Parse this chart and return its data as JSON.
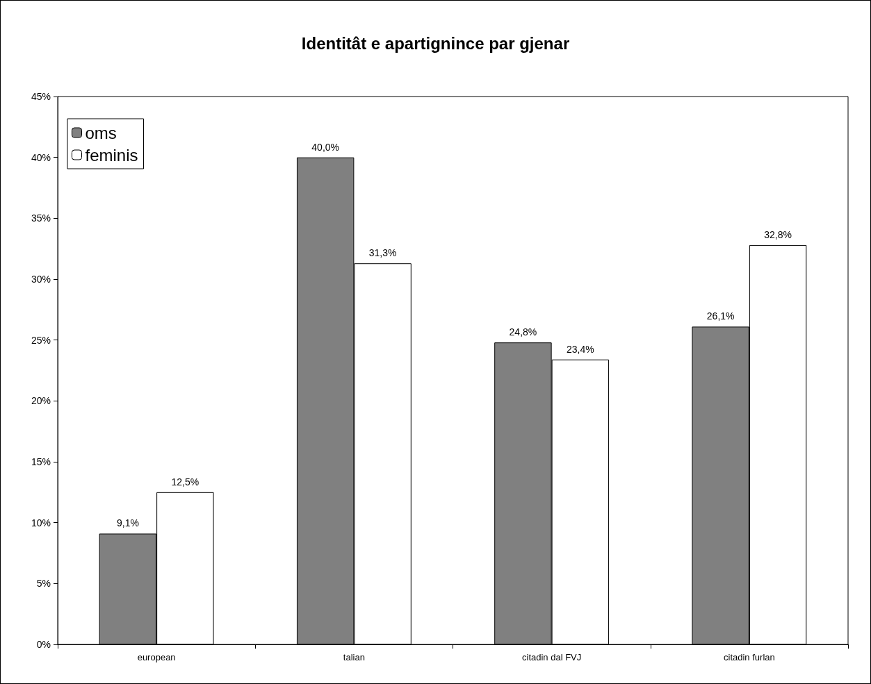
{
  "chart_data": {
    "type": "bar",
    "title": "Identitât e apartignince par gjenar",
    "categories": [
      "european",
      "talian",
      "citadin dal FVJ",
      "citadin furlan"
    ],
    "series": [
      {
        "name": "oms",
        "color": "#808080",
        "values": [
          9.1,
          40.0,
          24.8,
          26.1
        ],
        "value_labels": [
          "9,1%",
          "40,0%",
          "24,8%",
          "26,1%"
        ]
      },
      {
        "name": "feminis",
        "color": "#ffffff",
        "values": [
          12.5,
          31.3,
          23.4,
          32.8
        ],
        "value_labels": [
          "12,5%",
          "31,3%",
          "23,4%",
          "32,8%"
        ]
      }
    ],
    "ylim": [
      0,
      45
    ],
    "yticks": [
      {
        "value": 0,
        "label": "0%"
      },
      {
        "value": 5,
        "label": "5%"
      },
      {
        "value": 10,
        "label": "10%"
      },
      {
        "value": 15,
        "label": "15%"
      },
      {
        "value": 20,
        "label": "20%"
      },
      {
        "value": 25,
        "label": "25%"
      },
      {
        "value": 30,
        "label": "30%"
      },
      {
        "value": 35,
        "label": "35%"
      },
      {
        "value": 40,
        "label": "40%"
      },
      {
        "value": 45,
        "label": "45%"
      }
    ],
    "grid": false,
    "legend": "top left"
  }
}
